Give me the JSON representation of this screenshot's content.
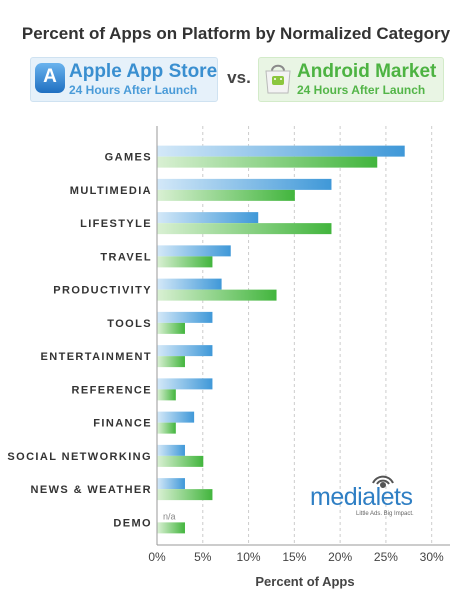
{
  "title": "Percent of Apps on Platform by Normalized Category",
  "apple": {
    "name": "Apple App Store",
    "subtitle": "24 Hours After Launch",
    "icon": "app-store-icon"
  },
  "android": {
    "name": "Android Market",
    "subtitle": "24 Hours After Launch",
    "icon": "android-market-bag-icon"
  },
  "vs_label": "vs.",
  "logo": {
    "word": "medialets",
    "tagline": "Little Ads. Big Impact."
  },
  "colors": {
    "apple_bar": "#4aa0dc",
    "android_bar": "#4cb94a",
    "grid": "#cccccc"
  },
  "chart_data": {
    "type": "bar",
    "orientation": "horizontal",
    "title": "Percent of Apps on Platform by Normalized Category",
    "xlabel": "Percent of Apps",
    "ylabel": "",
    "xlim": [
      0,
      32
    ],
    "xticks": [
      0,
      5,
      10,
      15,
      20,
      25,
      30
    ],
    "xtick_labels": [
      "0%",
      "5%",
      "10%",
      "15%",
      "20%",
      "25%",
      "30%"
    ],
    "grid": "vertical dashed",
    "categories": [
      "GAMES",
      "MULTIMEDIA",
      "LIFESTYLE",
      "TRAVEL",
      "PRODUCTIVITY",
      "TOOLS",
      "ENTERTAINMENT",
      "REFERENCE",
      "FINANCE",
      "SOCIAL NETWORKING",
      "NEWS & WEATHER",
      "DEMO"
    ],
    "series": [
      {
        "name": "Apple App Store",
        "values": [
          27,
          19,
          11,
          8,
          7,
          6,
          6,
          6,
          4,
          3,
          3,
          null
        ]
      },
      {
        "name": "Android Market",
        "values": [
          24,
          15,
          19,
          6,
          13,
          3,
          3,
          2,
          2,
          5,
          6,
          3
        ]
      }
    ],
    "annotations": [
      {
        "category": "DEMO",
        "series": "Apple App Store",
        "text": "n/a"
      }
    ]
  }
}
